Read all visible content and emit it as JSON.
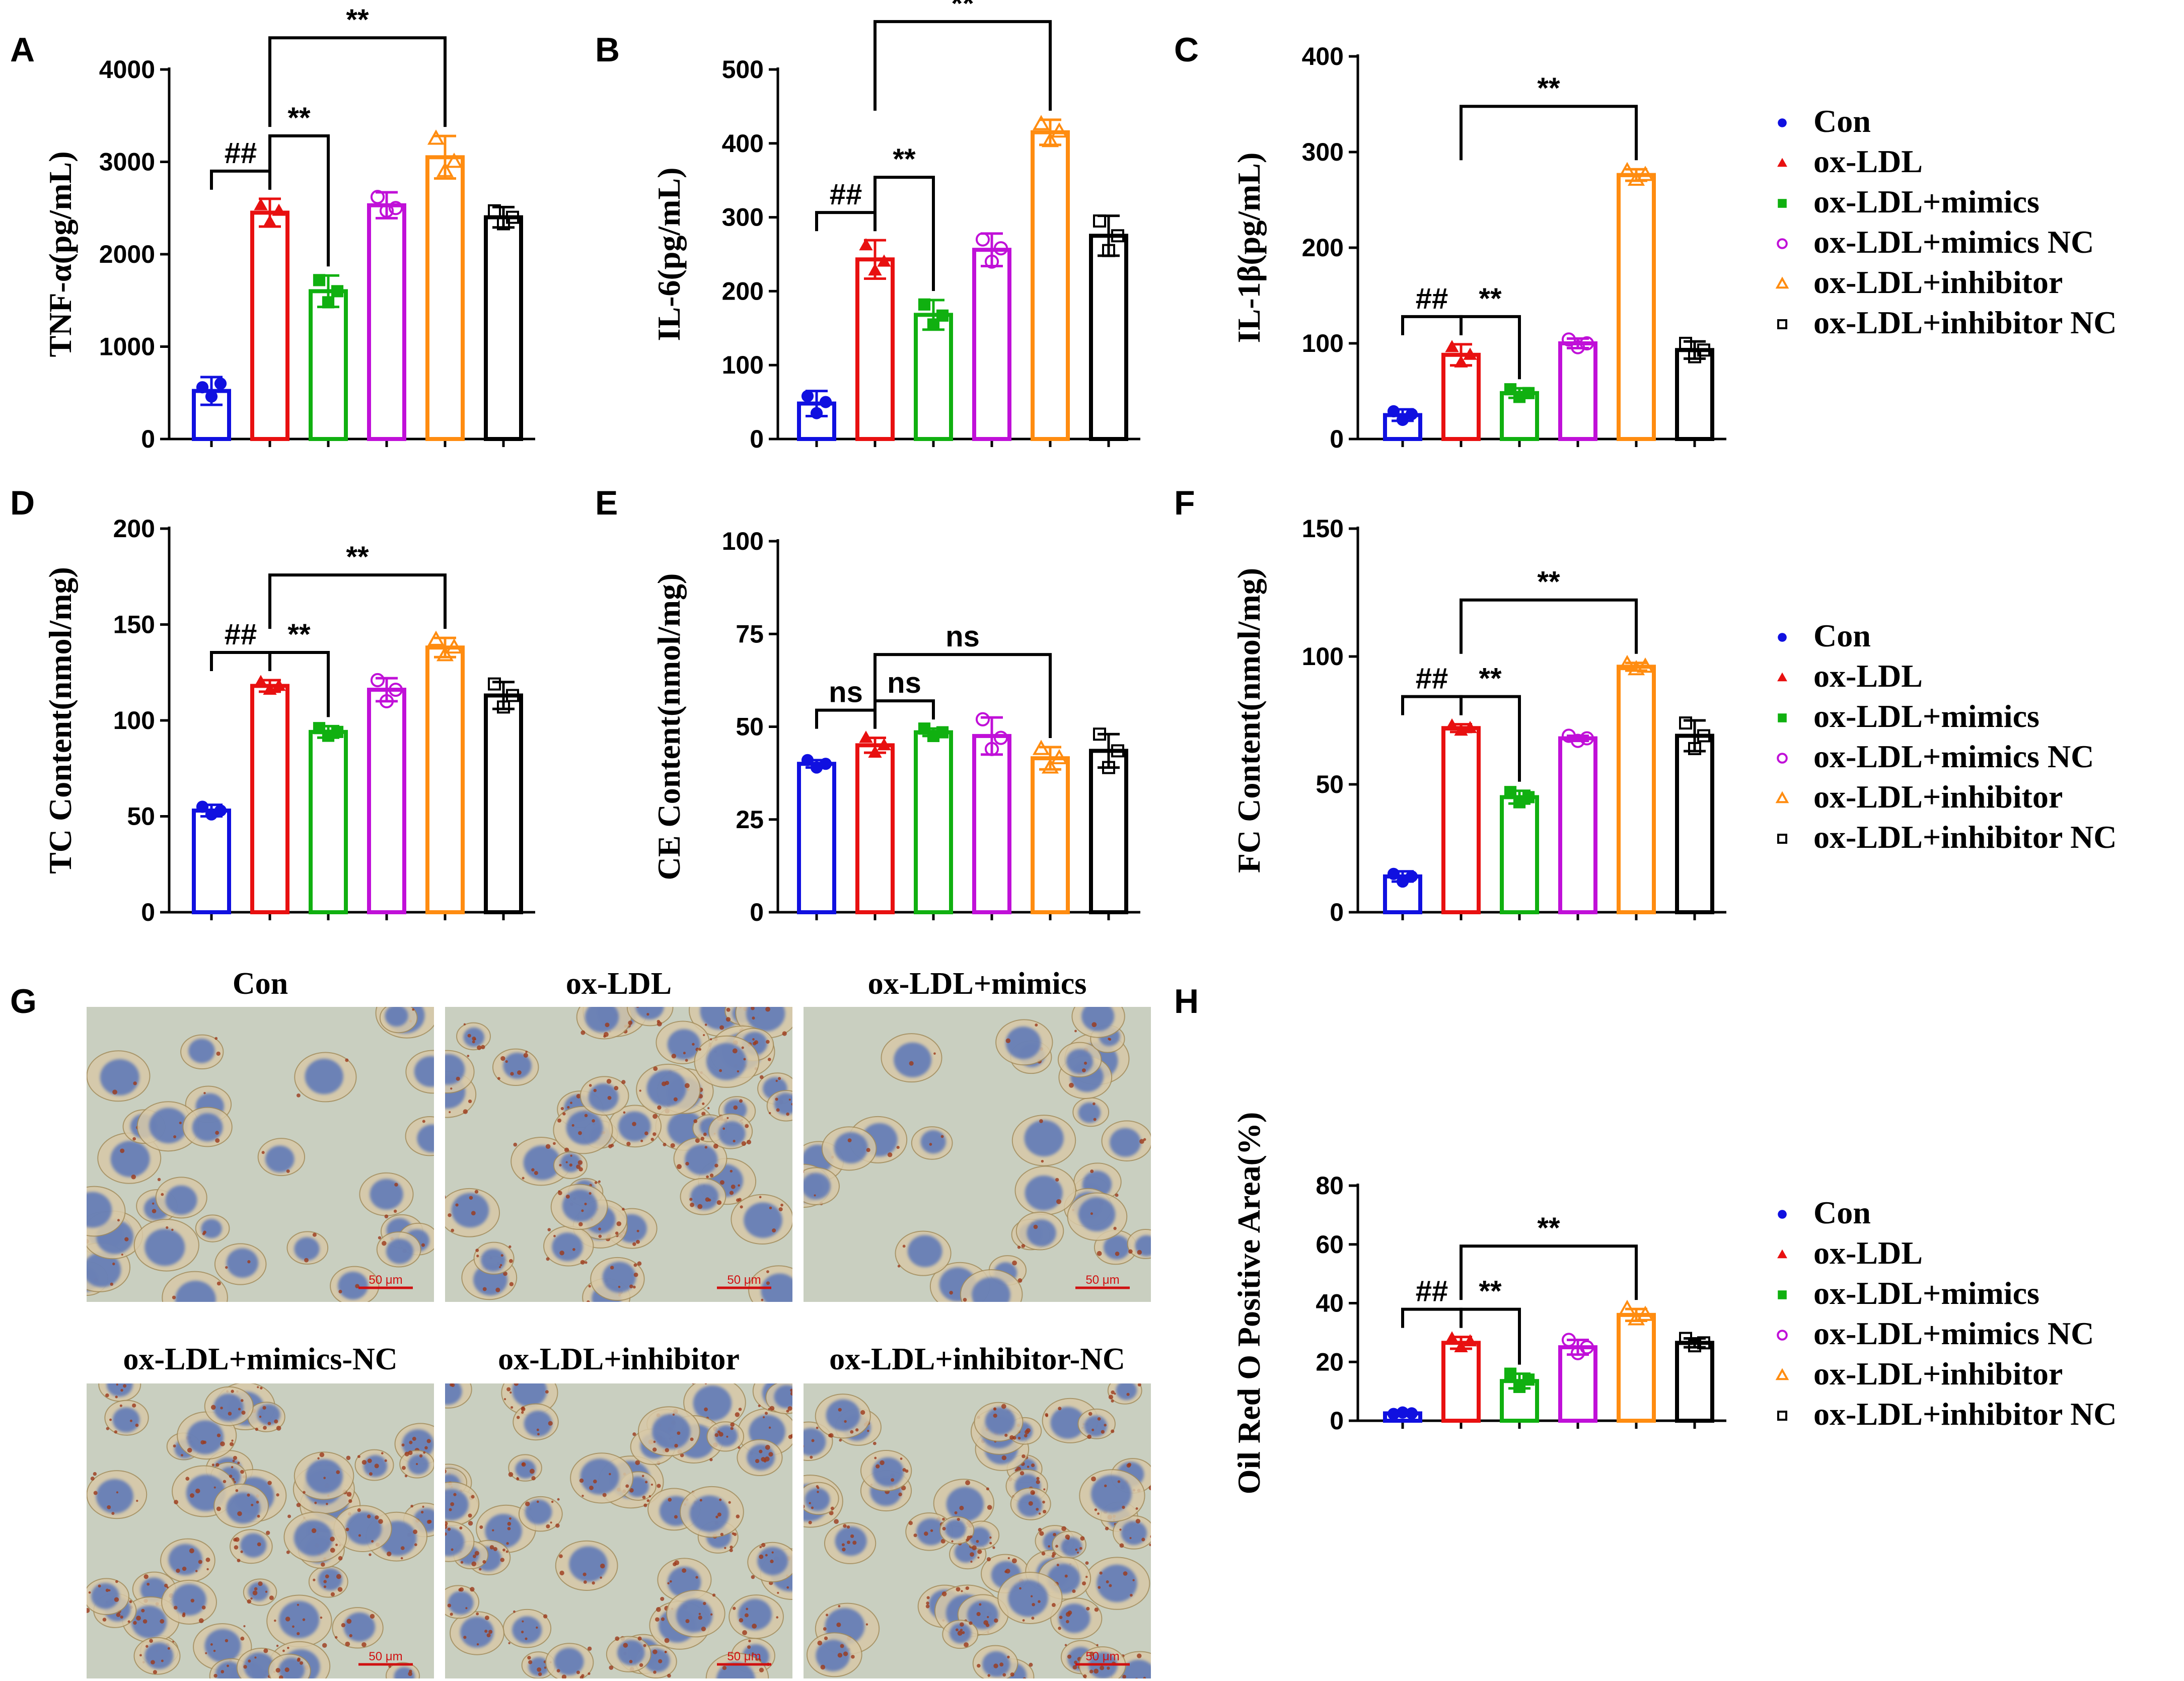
{
  "colors": {
    "Con": "#1010e0",
    "ox-LDL": "#e81010",
    "ox-LDL+mimics": "#10b010",
    "ox-LDL+mimics NC": "#c010d8",
    "ox-LDL+inhibitor": "#ff8c10",
    "ox-LDL+inhibitor NC": "#000000"
  },
  "groups": [
    "Con",
    "ox-LDL",
    "ox-LDL+mimics",
    "ox-LDL+mimics NC",
    "ox-LDL+inhibitor",
    "ox-LDL+inhibitor NC"
  ],
  "legend": {
    "entries": [
      "Con",
      "ox-LDL",
      "ox-LDL+mimics",
      "ox-LDL+mimics NC",
      "ox-LDL+inhibitor",
      "ox-LDL+inhibitor NC"
    ],
    "markers": [
      "dot",
      "triangle",
      "square",
      "circle-open",
      "triangle-open",
      "square-open"
    ]
  },
  "chart_data": [
    {
      "id": "A",
      "letter": "A",
      "type": "bar",
      "ylabel": "TNF-α(pg/mL)",
      "ylim": [
        0,
        4000
      ],
      "yticks": [
        0,
        1000,
        2000,
        3000,
        4000
      ],
      "values": [
        520,
        2450,
        1600,
        2530,
        3050,
        2400
      ],
      "errors": [
        150,
        150,
        170,
        140,
        230,
        110
      ],
      "points": [
        [
          560,
          460,
          600
        ],
        [
          2530,
          2350,
          2470
        ],
        [
          1720,
          1480,
          1600
        ],
        [
          2620,
          2470,
          2500
        ],
        [
          3250,
          2900,
          3000
        ],
        [
          2470,
          2330,
          2400
        ]
      ],
      "brackets": [
        {
          "from": 0,
          "to": 1,
          "label": "##",
          "level": 0
        },
        {
          "from": 1,
          "to": 2,
          "label": "**",
          "level": 1
        },
        {
          "from": 1,
          "to": 4,
          "label": "**",
          "level": 2
        }
      ]
    },
    {
      "id": "B",
      "letter": "B",
      "type": "bar",
      "ylabel": "IL-6(pg/mL)",
      "ylim": [
        0,
        500
      ],
      "yticks": [
        0,
        100,
        200,
        300,
        400,
        500
      ],
      "values": [
        48,
        243,
        168,
        256,
        415,
        275
      ],
      "errors": [
        17,
        26,
        20,
        22,
        17,
        27
      ],
      "points": [
        [
          58,
          35,
          50
        ],
        [
          262,
          228,
          240
        ],
        [
          182,
          155,
          167
        ],
        [
          270,
          240,
          258
        ],
        [
          426,
          403,
          416
        ],
        [
          295,
          255,
          275
        ]
      ],
      "brackets": [
        {
          "from": 0,
          "to": 1,
          "label": "##",
          "level": 0
        },
        {
          "from": 1,
          "to": 2,
          "label": "**",
          "level": 1
        },
        {
          "from": 1,
          "to": 4,
          "label": "**",
          "level": 2
        }
      ]
    },
    {
      "id": "C",
      "letter": "C",
      "type": "bar",
      "ylabel": "IL-1β(pg/mL)",
      "ylim": [
        0,
        400
      ],
      "yticks": [
        0,
        100,
        200,
        300,
        400
      ],
      "values": [
        25,
        88,
        48,
        100,
        276,
        93
      ],
      "errors": [
        6,
        11,
        5,
        5,
        6,
        9
      ],
      "points": [
        [
          29,
          20,
          26
        ],
        [
          96,
          80,
          88
        ],
        [
          52,
          44,
          48
        ],
        [
          104,
          96,
          100
        ],
        [
          280,
          271,
          276
        ],
        [
          100,
          86,
          93
        ]
      ],
      "brackets": [
        {
          "from": 0,
          "to": 1,
          "label": "##",
          "level": 0
        },
        {
          "from": 1,
          "to": 2,
          "label": "**",
          "level": 0
        },
        {
          "from": 1,
          "to": 4,
          "label": "**",
          "level": 1
        }
      ]
    },
    {
      "id": "D",
      "letter": "D",
      "type": "bar",
      "ylabel": "TC Content(nmol/mg)",
      "ylim": [
        0,
        200
      ],
      "yticks": [
        0,
        50,
        100,
        150,
        200
      ],
      "values": [
        53,
        118,
        94,
        116,
        138,
        113
      ],
      "errors": [
        3,
        3,
        3,
        6,
        5,
        7
      ],
      "points": [
        [
          55,
          51,
          53
        ],
        [
          120,
          116,
          118
        ],
        [
          96,
          92,
          94
        ],
        [
          121,
          110,
          116
        ],
        [
          142,
          134,
          138
        ],
        [
          119,
          107,
          113
        ]
      ],
      "brackets": [
        {
          "from": 0,
          "to": 1,
          "label": "##",
          "level": 0
        },
        {
          "from": 1,
          "to": 2,
          "label": "**",
          "level": 0
        },
        {
          "from": 1,
          "to": 4,
          "label": "**",
          "level": 1
        }
      ]
    },
    {
      "id": "E",
      "letter": "E",
      "type": "bar",
      "ylabel": "CE Content(nmol/mg)",
      "ylim": [
        0,
        100
      ],
      "yticks": [
        0,
        25,
        50,
        75,
        100
      ],
      "values": [
        40,
        45,
        48.5,
        47.5,
        41.5,
        43.5
      ],
      "errors": [
        1,
        2,
        1,
        5,
        3,
        4.5
      ],
      "points": [
        [
          41,
          39,
          40
        ],
        [
          47,
          43,
          45
        ],
        [
          49.5,
          47.5,
          48.5
        ],
        [
          52,
          44,
          47
        ],
        [
          44,
          39,
          41.5
        ],
        [
          48,
          39,
          43.5
        ]
      ],
      "brackets": [
        {
          "from": 0,
          "to": 1,
          "label": "ns",
          "level": 0
        },
        {
          "from": 1,
          "to": 2,
          "label": "ns",
          "level": 0
        },
        {
          "from": 1,
          "to": 4,
          "label": "ns",
          "level": 1
        }
      ]
    },
    {
      "id": "F",
      "letter": "F",
      "type": "bar",
      "ylabel": "FC Content(nmol/mg)",
      "ylim": [
        0,
        150
      ],
      "yticks": [
        0,
        50,
        100,
        150
      ],
      "values": [
        14,
        72,
        45,
        68,
        96,
        69
      ],
      "errors": [
        2,
        1.5,
        2.5,
        1,
        1.5,
        6
      ],
      "points": [
        [
          15,
          12,
          14
        ],
        [
          73,
          71,
          72
        ],
        [
          47,
          43,
          45
        ],
        [
          69,
          67,
          68
        ],
        [
          97,
          95,
          96
        ],
        [
          74,
          64,
          69
        ]
      ],
      "brackets": [
        {
          "from": 0,
          "to": 1,
          "label": "##",
          "level": 0
        },
        {
          "from": 1,
          "to": 2,
          "label": "**",
          "level": 0
        },
        {
          "from": 1,
          "to": 4,
          "label": "**",
          "level": 1
        }
      ]
    },
    {
      "id": "H",
      "letter": "H",
      "type": "bar",
      "ylabel": "Oil Red O Positive Area(%)",
      "ylim": [
        0,
        80
      ],
      "yticks": [
        0,
        20,
        40,
        60,
        80
      ],
      "values": [
        2.5,
        26.5,
        13.5,
        25,
        36,
        26.5
      ],
      "errors": [
        0.5,
        2,
        2.5,
        2.5,
        2,
        1.5
      ],
      "points": [
        [
          2.3,
          2.8,
          2.5
        ],
        [
          28,
          25,
          27
        ],
        [
          16,
          11.5,
          14
        ],
        [
          27.5,
          23,
          25
        ],
        [
          38,
          34.5,
          36
        ],
        [
          28,
          25.5,
          26.5
        ]
      ],
      "brackets": [
        {
          "from": 0,
          "to": 1,
          "label": "##",
          "level": 0
        },
        {
          "from": 1,
          "to": 2,
          "label": "**",
          "level": 0
        },
        {
          "from": 1,
          "to": 4,
          "label": "**",
          "level": 1
        }
      ]
    }
  ],
  "micrographs": {
    "letter": "G",
    "scale_bar": "50 μm",
    "panels": [
      {
        "title": "Con",
        "stain": "light"
      },
      {
        "title": "ox-LDL",
        "stain": "heavy"
      },
      {
        "title": "ox-LDL+mimics",
        "stain": "light"
      },
      {
        "title": "ox-LDL+mimics-NC",
        "stain": "heavy"
      },
      {
        "title": "ox-LDL+inhibitor",
        "stain": "heavy"
      },
      {
        "title": "ox-LDL+inhibitor-NC",
        "stain": "heavy"
      }
    ]
  }
}
